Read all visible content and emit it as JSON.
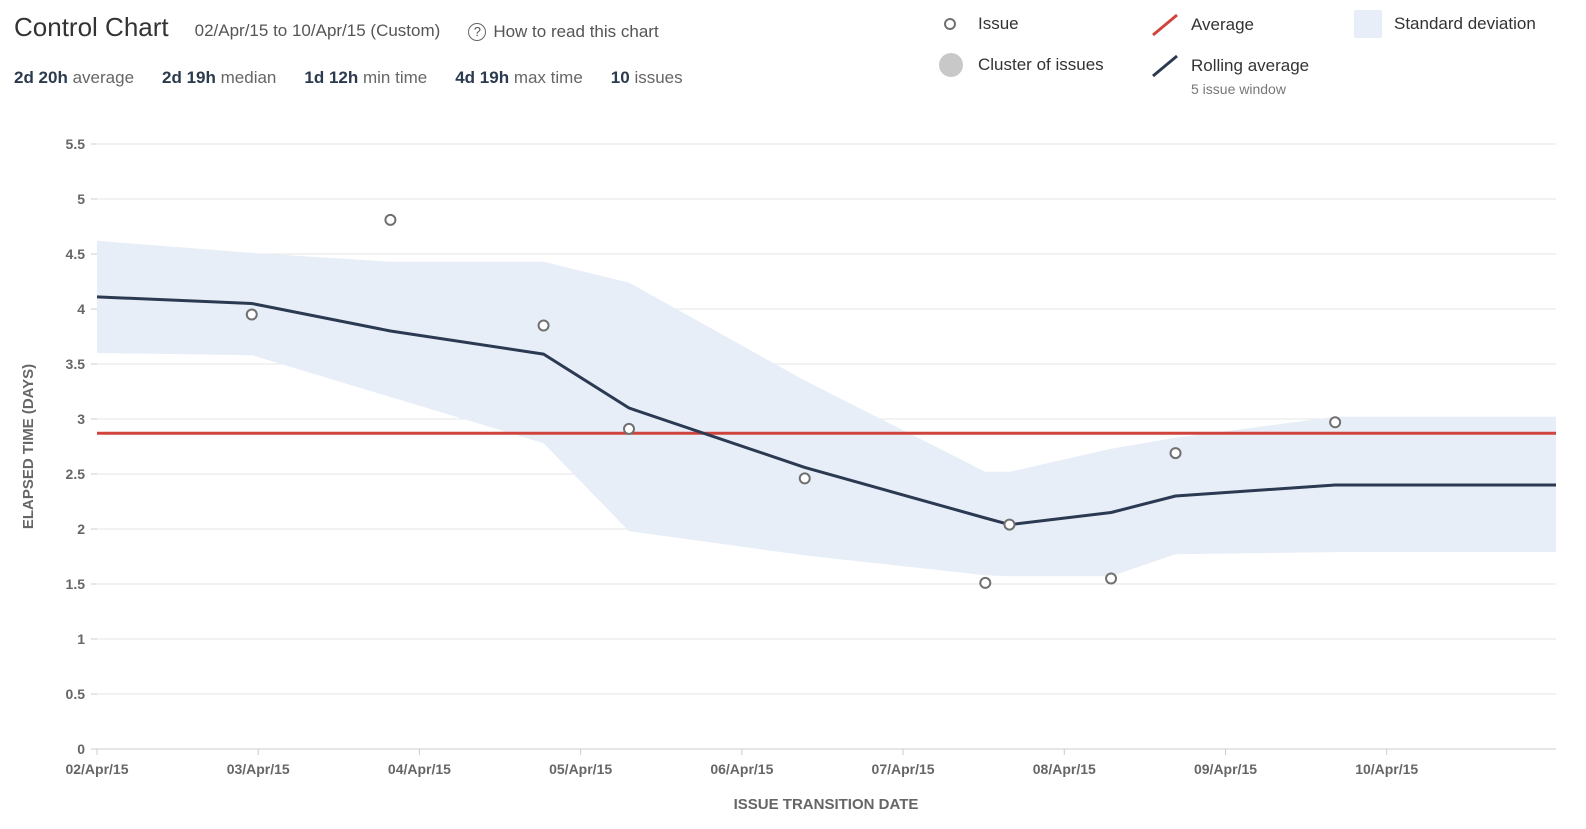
{
  "header": {
    "title": "Control Chart",
    "date_range": "02/Apr/15 to 10/Apr/15 (Custom)",
    "help_label": "How to read this chart",
    "help_icon": "question-circle-icon"
  },
  "stats": [
    {
      "value": "2d 20h",
      "label": "average"
    },
    {
      "value": "2d 19h",
      "label": "median"
    },
    {
      "value": "1d 12h",
      "label": "min time"
    },
    {
      "value": "4d 19h",
      "label": "max time"
    },
    {
      "value": "10",
      "label": "issues"
    }
  ],
  "legend": {
    "issue": "Issue",
    "cluster": "Cluster of issues",
    "average": "Average",
    "rolling": "Rolling average",
    "rolling_sub": "5 issue window",
    "stddev": "Standard deviation"
  },
  "colors": {
    "average": "#d0443e",
    "rolling": "#2b3a52",
    "stddev": "#e8eef8",
    "issue_stroke": "#707070",
    "cluster": "#c8c8c8",
    "grid": "#e6e6e6"
  },
  "chart_data": {
    "type": "scatter",
    "xlabel": "ISSUE TRANSITION DATE",
    "ylabel": "ELAPSED TIME (DAYS)",
    "ylim": [
      0,
      5.5
    ],
    "yticks": [
      "0",
      "0.5",
      "1",
      "1.5",
      "2",
      "2.5",
      "3",
      "3.5",
      "4",
      "4.5",
      "5",
      "5.5"
    ],
    "xticks": [
      "02/Apr/15",
      "03/Apr/15",
      "04/Apr/15",
      "05/Apr/15",
      "06/Apr/15",
      "07/Apr/15",
      "08/Apr/15",
      "09/Apr/15",
      "10/Apr/15"
    ],
    "xlim_days": [
      0,
      9.05
    ],
    "grid": true,
    "average": 2.87,
    "issues": [
      {
        "x": 0.96,
        "y": 3.95
      },
      {
        "x": 1.82,
        "y": 4.81
      },
      {
        "x": 2.77,
        "y": 3.85
      },
      {
        "x": 3.3,
        "y": 2.91
      },
      {
        "x": 4.39,
        "y": 2.46
      },
      {
        "x": 5.51,
        "y": 1.51
      },
      {
        "x": 5.66,
        "y": 2.04
      },
      {
        "x": 6.29,
        "y": 1.55
      },
      {
        "x": 6.69,
        "y": 2.69
      },
      {
        "x": 7.68,
        "y": 2.97
      }
    ],
    "rolling_average": [
      [
        0,
        4.11
      ],
      [
        0.96,
        4.05
      ],
      [
        1.82,
        3.8
      ],
      [
        2.77,
        3.59
      ],
      [
        3.3,
        3.1
      ],
      [
        4.39,
        2.56
      ],
      [
        5.51,
        2.1
      ],
      [
        5.66,
        2.04
      ],
      [
        6.29,
        2.15
      ],
      [
        6.69,
        2.3
      ],
      [
        7.68,
        2.4
      ],
      [
        9.05,
        2.4
      ]
    ],
    "stddev_upper": [
      [
        0,
        4.62
      ],
      [
        0.96,
        4.51
      ],
      [
        1.82,
        4.43
      ],
      [
        2.77,
        4.43
      ],
      [
        3.3,
        4.24
      ],
      [
        4.39,
        3.35
      ],
      [
        5.51,
        2.52
      ],
      [
        5.66,
        2.52
      ],
      [
        6.29,
        2.73
      ],
      [
        6.69,
        2.83
      ],
      [
        7.68,
        3.02
      ],
      [
        9.05,
        3.02
      ]
    ],
    "stddev_lower": [
      [
        0,
        3.6
      ],
      [
        0.96,
        3.58
      ],
      [
        1.82,
        3.2
      ],
      [
        2.77,
        2.78
      ],
      [
        3.3,
        1.98
      ],
      [
        4.39,
        1.76
      ],
      [
        5.51,
        1.58
      ],
      [
        5.66,
        1.57
      ],
      [
        6.29,
        1.57
      ],
      [
        6.69,
        1.77
      ],
      [
        7.68,
        1.79
      ],
      [
        9.05,
        1.79
      ]
    ]
  }
}
